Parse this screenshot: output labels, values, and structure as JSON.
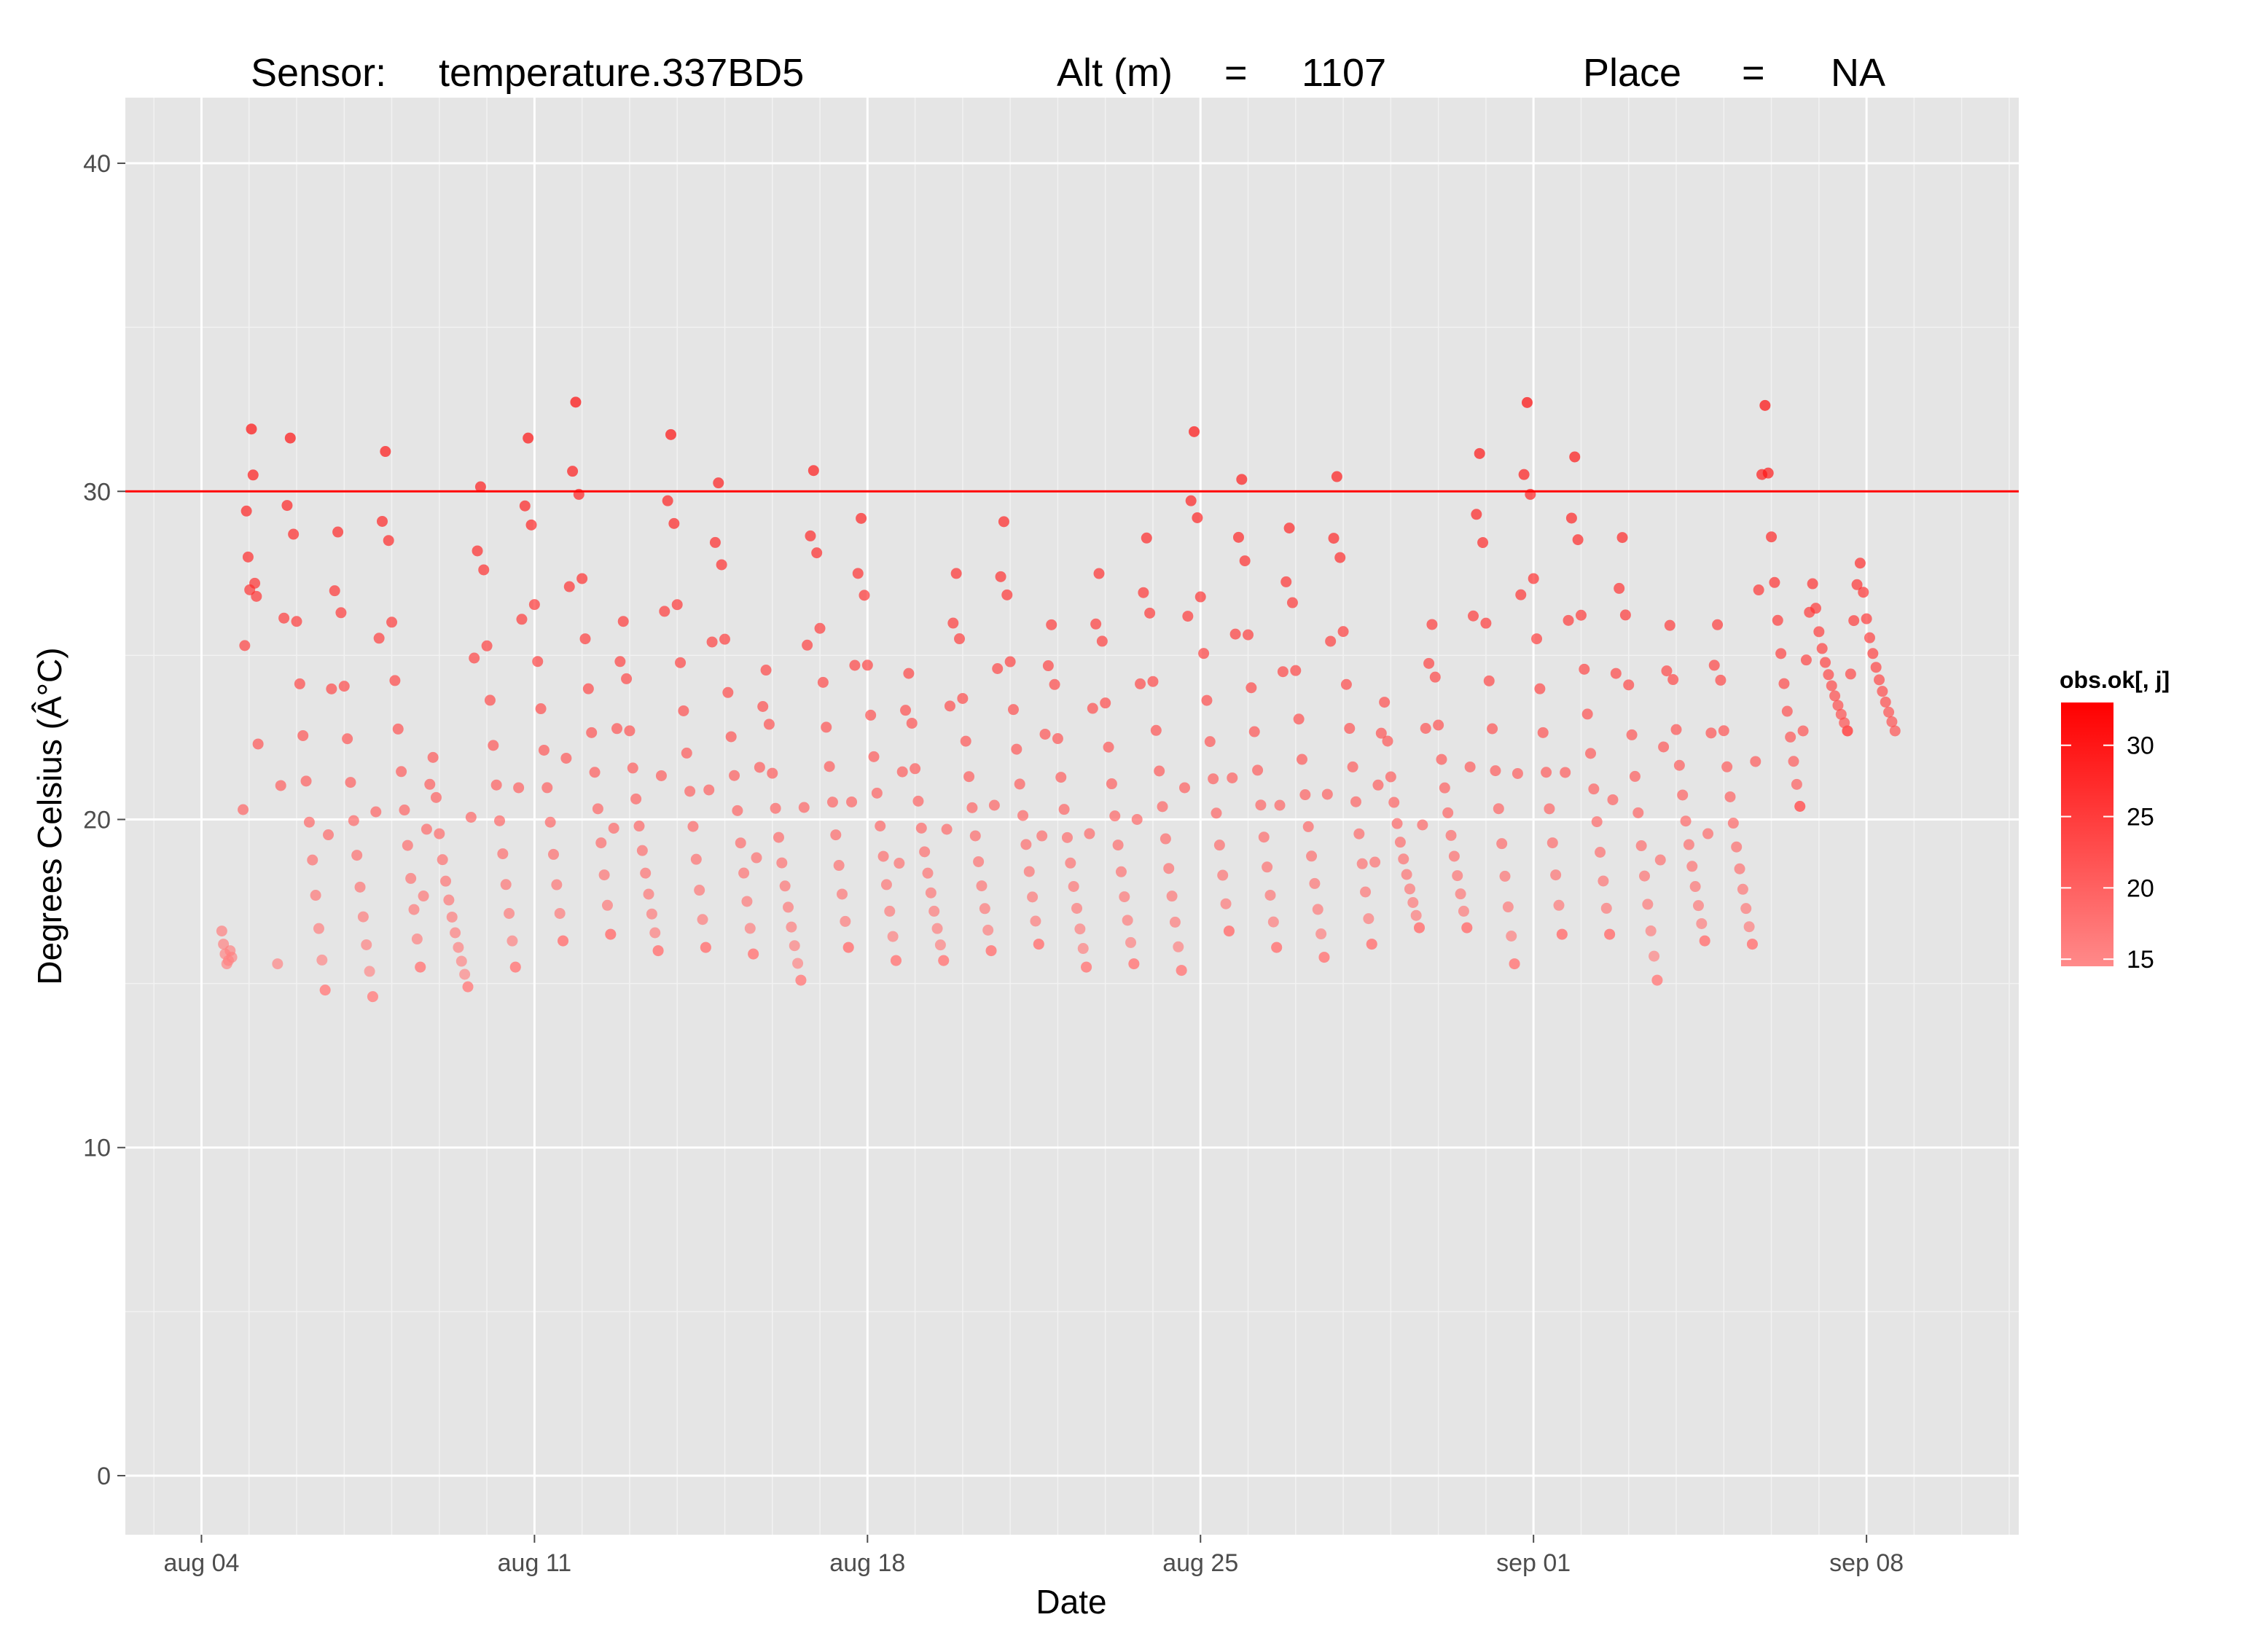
{
  "header": {
    "sensor_label": "Sensor:",
    "sensor_value": "temperature.337BD5",
    "alt_label": "Alt (m)",
    "alt_eq": "=",
    "alt_value": "1107",
    "place_label": "Place",
    "place_eq": "=",
    "place_value": "NA"
  },
  "colors": {
    "panel_bg": "#e5e5e5",
    "grid_major": "#ffffff",
    "grid_minor": "#f2f2f2",
    "threshold_line": "#ff0000",
    "point_high": "#ff0000",
    "point_low": "#ff8a8a"
  },
  "chart_data": {
    "type": "scatter",
    "title": "",
    "xlabel": "Date",
    "ylabel": "Degrees Celsius (Â°C)",
    "x_ticks": [
      {
        "label": "aug 04",
        "day": 0
      },
      {
        "label": "aug 11",
        "day": 7
      },
      {
        "label": "aug 18",
        "day": 14
      },
      {
        "label": "aug 25",
        "day": 21
      },
      {
        "label": "sep 01",
        "day": 28
      },
      {
        "label": "sep 08",
        "day": 35
      }
    ],
    "xlim_days": [
      -1.6,
      38.2
    ],
    "ylim": [
      -1.8,
      42
    ],
    "y_ticks": [
      0,
      10,
      20,
      30,
      40
    ],
    "hline": 30,
    "legend": {
      "title": "obs.ok[, j]",
      "position": "right",
      "ticks": [
        30,
        25,
        20,
        15
      ],
      "range": [
        14.5,
        33
      ]
    },
    "daily_cycles": [
      {
        "min": 15.6,
        "max": 31.9
      },
      {
        "min": 14.8,
        "max": 29.0
      },
      {
        "min": 14.6,
        "max": 31.5
      },
      {
        "min": 15.5,
        "max": 22.0
      },
      {
        "min": 14.9,
        "max": 30.4
      },
      {
        "min": 15.5,
        "max": 31.9
      },
      {
        "min": 16.3,
        "max": 33.0
      },
      {
        "min": 16.5,
        "max": 26.2
      },
      {
        "min": 16.0,
        "max": 32.0
      },
      {
        "min": 16.1,
        "max": 30.5
      },
      {
        "min": 15.9,
        "max": 24.7
      },
      {
        "min": 15.1,
        "max": 30.9
      },
      {
        "min": 16.1,
        "max": 29.4
      },
      {
        "min": 15.7,
        "max": 24.6
      },
      {
        "min": 15.7,
        "max": 27.7
      },
      {
        "min": 16.0,
        "max": 29.3
      },
      {
        "min": 16.2,
        "max": 26.1
      },
      {
        "min": 15.5,
        "max": 27.7
      },
      {
        "min": 15.6,
        "max": 28.8
      },
      {
        "min": 15.4,
        "max": 32.1
      },
      {
        "min": 16.6,
        "max": 30.6
      },
      {
        "min": 16.1,
        "max": 29.1
      },
      {
        "min": 15.8,
        "max": 30.7
      },
      {
        "min": 16.2,
        "max": 23.7
      },
      {
        "min": 16.7,
        "max": 26.1
      },
      {
        "min": 16.7,
        "max": 31.4
      },
      {
        "min": 15.6,
        "max": 33.0
      },
      {
        "min": 16.5,
        "max": 31.3
      },
      {
        "min": 16.5,
        "max": 28.8
      },
      {
        "min": 15.1,
        "max": 26.1
      },
      {
        "min": 16.3,
        "max": 26.1
      },
      {
        "min": 16.2,
        "max": 32.9
      },
      {
        "min": 20.4,
        "max": 27.3
      },
      {
        "min": 22.7,
        "max": 27.9
      }
    ],
    "days_visual": [
      {
        "x": 0.55,
        "values": [
          16.6,
          16.2,
          15.9,
          15.6,
          15.7,
          16.0,
          15.8
        ]
      },
      {
        "x": 1.05,
        "values": [
          20.3,
          25.3,
          29.4,
          28.0,
          27.0,
          31.9,
          30.5,
          27.2,
          26.8,
          22.3
        ]
      }
    ]
  }
}
